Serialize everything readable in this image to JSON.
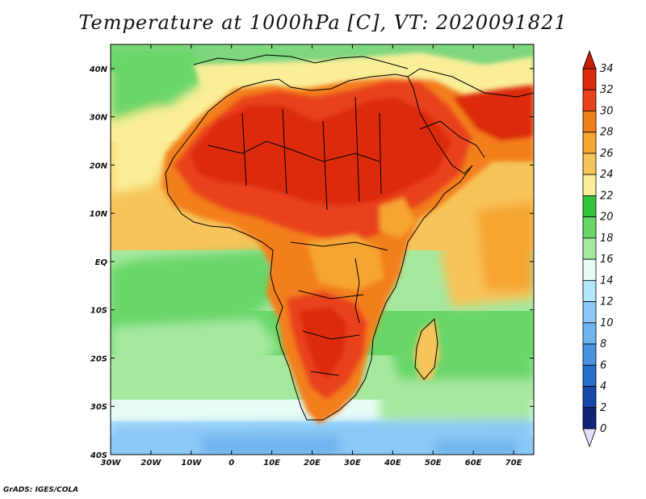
{
  "title": "Temperature at 1000hPa [C], VT: 2020091821",
  "credit": "GrADS: IGES/COLA",
  "map": {
    "variable": "Temperature at 1000hPa",
    "units": "C",
    "valid_time": "2020091821",
    "lon_range": [
      -30,
      75
    ],
    "lat_range": [
      -40,
      45
    ],
    "lon_ticks": [
      "30W",
      "20W",
      "10W",
      "0",
      "10E",
      "20E",
      "30E",
      "40E",
      "50E",
      "60E",
      "70E"
    ],
    "lat_ticks": [
      "40N",
      "30N",
      "20N",
      "10N",
      "EQ",
      "10S",
      "20S",
      "30S",
      "40S"
    ],
    "colors": {
      "ocean_cool": "#5fd35f",
      "ocean_warm": "#f5c855",
      "land_hot": "#d42a0e",
      "sahara_core": "#e03a10",
      "southern_cold": "#b4e6ff",
      "antarctic_cold": "#6eb4ee",
      "coastline": "#000000"
    }
  },
  "colorbar": {
    "labels": [
      "34",
      "32",
      "30",
      "28",
      "26",
      "24",
      "22",
      "20",
      "18",
      "16",
      "14",
      "12",
      "10",
      "8",
      "6",
      "4",
      "2",
      "0"
    ],
    "bins": [
      {
        "lo": 32,
        "hi": 34,
        "color": "#dc2a0a"
      },
      {
        "lo": 30,
        "hi": 32,
        "color": "#e8431c"
      },
      {
        "lo": 28,
        "hi": 30,
        "color": "#f37f1a"
      },
      {
        "lo": 26,
        "hi": 28,
        "color": "#f5a532"
      },
      {
        "lo": 24,
        "hi": 26,
        "color": "#f6c45a"
      },
      {
        "lo": 22,
        "hi": 24,
        "color": "#faee98"
      },
      {
        "lo": 20,
        "hi": 22,
        "color": "#35c23c"
      },
      {
        "lo": 18,
        "hi": 20,
        "color": "#6ad66a"
      },
      {
        "lo": 16,
        "hi": 18,
        "color": "#a6e8a0"
      },
      {
        "lo": 14,
        "hi": 16,
        "color": "#e8fcf6"
      },
      {
        "lo": 12,
        "hi": 14,
        "color": "#b4e6ff"
      },
      {
        "lo": 10,
        "hi": 12,
        "color": "#8cc8f5"
      },
      {
        "lo": 8,
        "hi": 10,
        "color": "#6eb4ee"
      },
      {
        "lo": 6,
        "hi": 8,
        "color": "#4a92e0"
      },
      {
        "lo": 4,
        "hi": 6,
        "color": "#2a6ecc"
      },
      {
        "lo": 2,
        "hi": 4,
        "color": "#1648a8"
      },
      {
        "lo": 0,
        "hi": 2,
        "color": "#0e2478"
      }
    ],
    "over_color": "#c61e06",
    "under_color": "#e4ddff"
  }
}
